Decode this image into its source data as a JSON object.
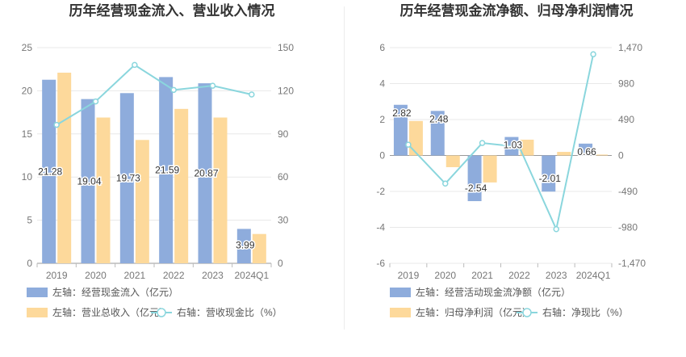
{
  "chart_data": [
    {
      "type": "bar",
      "title": "历年经营现金流入、营业收入情况",
      "categories": [
        "2019",
        "2020",
        "2021",
        "2022",
        "2023",
        "2024Q1"
      ],
      "left_axis": {
        "ylim": [
          0,
          25
        ],
        "ticks": [
          "0",
          "5",
          "10",
          "15",
          "20",
          "25"
        ]
      },
      "right_axis": {
        "ylim": [
          0,
          150
        ],
        "ticks": [
          "0",
          "30",
          "60",
          "90",
          "120",
          "150"
        ]
      },
      "series": [
        {
          "name": "左轴：经营现金流入（亿元）",
          "kind": "bar",
          "axis": "left",
          "color": "#8eacdc",
          "values": [
            21.28,
            19.04,
            19.73,
            21.59,
            20.87,
            3.99
          ],
          "labels": [
            "21.28",
            "19.04",
            "19.73",
            "21.59",
            "20.87",
            "3.99"
          ]
        },
        {
          "name": "左轴：营业总收入（亿元）",
          "kind": "bar",
          "axis": "left",
          "color": "#fdd99b",
          "values": [
            22.1,
            16.9,
            14.3,
            17.9,
            16.9,
            3.4
          ]
        },
        {
          "name": "右轴：营收现金比（%）",
          "kind": "line",
          "axis": "right",
          "color": "#8ad6dd",
          "values": [
            96.3,
            112.6,
            138.0,
            120.6,
            123.5,
            117.4
          ]
        }
      ],
      "legend": "bottom",
      "grid": true
    },
    {
      "type": "bar",
      "title": "历年经营现金流净额、归母净利润情况",
      "categories": [
        "2019",
        "2020",
        "2021",
        "2022",
        "2023",
        "2024Q1"
      ],
      "left_axis": {
        "ylim": [
          -6,
          6
        ],
        "ticks": [
          "-6",
          "-4",
          "-2",
          "0",
          "2",
          "4",
          "6"
        ]
      },
      "right_axis": {
        "ylim": [
          -1470,
          1470
        ],
        "ticks": [
          "-1,470",
          "-980",
          "-490",
          "0",
          "490",
          "980",
          "1,470"
        ]
      },
      "series": [
        {
          "name": "左轴：经营活动现金流净额（亿元）",
          "kind": "bar",
          "axis": "left",
          "color": "#8eacdc",
          "values": [
            2.82,
            2.48,
            -2.54,
            1.03,
            -2.01,
            0.66
          ],
          "labels": [
            "2.82",
            "2.48",
            "-2.54",
            "1.03",
            "-2.01",
            "0.66"
          ]
        },
        {
          "name": "左轴：归母净利润（亿元）",
          "kind": "bar",
          "axis": "left",
          "color": "#fdd99b",
          "values": [
            1.92,
            -0.65,
            -1.5,
            0.88,
            0.2,
            0.05
          ]
        },
        {
          "name": "右轴：净现比（%）",
          "kind": "line",
          "axis": "right",
          "color": "#8ad6dd",
          "values": [
            147,
            -383,
            170,
            117,
            -1005,
            1380
          ]
        }
      ],
      "legend": "bottom",
      "grid": true
    }
  ]
}
